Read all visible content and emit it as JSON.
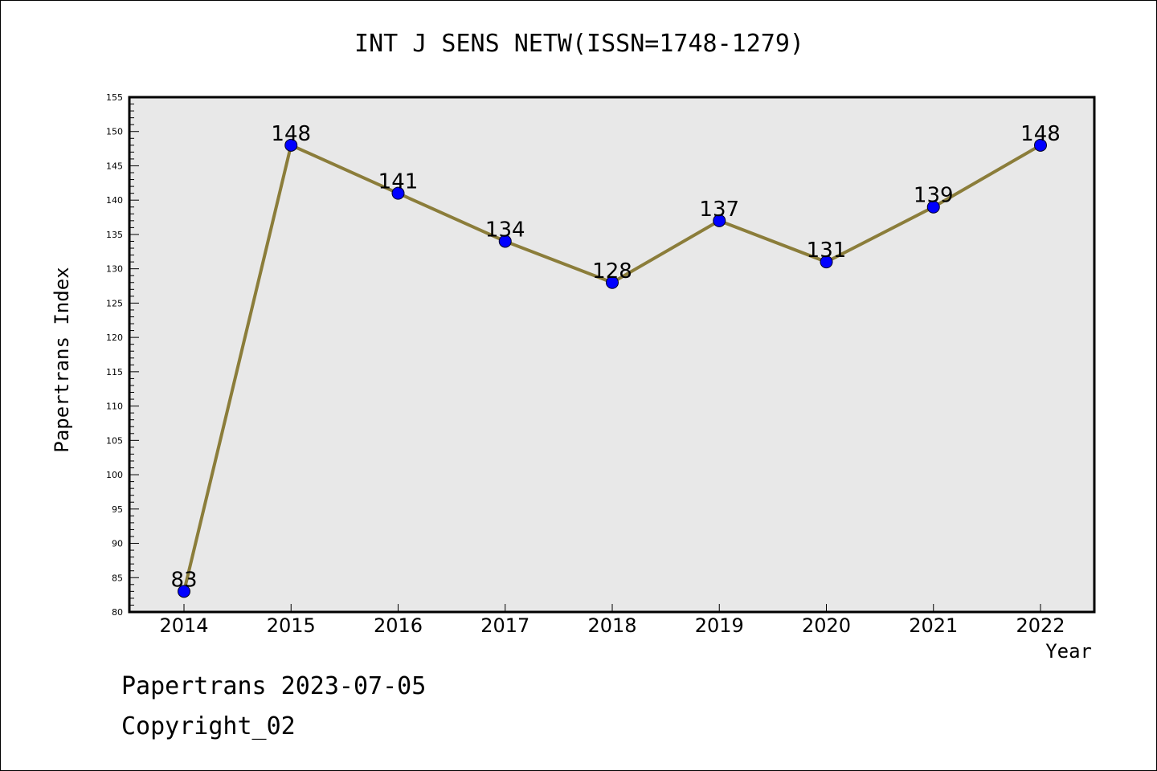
{
  "chart_data": {
    "type": "line",
    "title": "INT J SENS NETW(ISSN=1748-1279)",
    "xlabel": "Year",
    "ylabel": "Papertrans Index",
    "categories": [
      "2014",
      "2015",
      "2016",
      "2017",
      "2018",
      "2019",
      "2020",
      "2021",
      "2022"
    ],
    "series": [
      {
        "values": [
          83,
          148,
          141,
          134,
          128,
          137,
          131,
          139,
          148
        ]
      }
    ],
    "data_labels": [
      "83",
      "148",
      "141",
      "134",
      "128",
      "137",
      "131",
      "139",
      "148"
    ],
    "ylim": [
      80,
      155
    ],
    "ytick_step": 5,
    "yticks": [
      "80",
      "85",
      "90",
      "95",
      "100",
      "105",
      "110",
      "115",
      "120",
      "125",
      "130",
      "135",
      "140",
      "145",
      "150",
      "155"
    ],
    "grid": false,
    "line_color": "#8b7d3a",
    "marker_color": "#0000ff",
    "plot_background": "#e8e8e8"
  },
  "footer": {
    "line1": "Papertrans 2023-07-05",
    "line2": "Copyright_02"
  }
}
